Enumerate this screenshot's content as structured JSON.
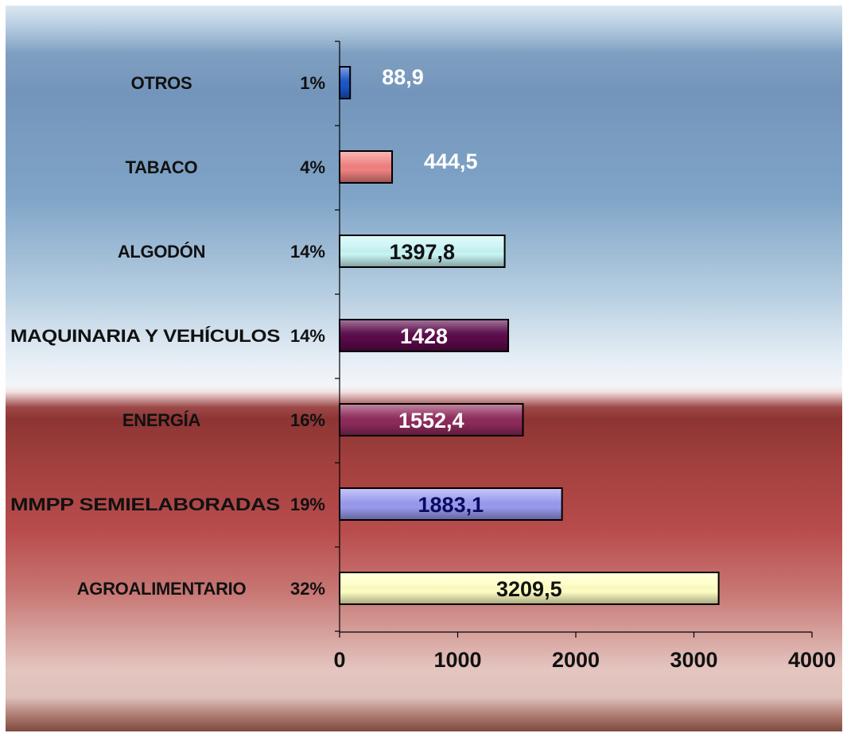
{
  "chart_data": {
    "type": "bar",
    "orientation": "horizontal",
    "title": "",
    "xlabel": "",
    "ylabel": "",
    "xlim": [
      0,
      4000
    ],
    "x_ticks": [
      "0",
      "1000",
      "2000",
      "3000",
      "4000"
    ],
    "grid": false,
    "legend": "none",
    "categories": [
      "OTROS",
      "TABACO",
      "ALGODÓN",
      "MAQUINARIA Y VEHÍCULOS",
      "ENERGÍA",
      "MMPP SEMIELABORADAS",
      "AGROALIMENTARIO"
    ],
    "percentages": [
      "1%",
      "4%",
      "14%",
      "14%",
      "16%",
      "19%",
      "32%"
    ],
    "values": [
      88.9,
      444.5,
      1397.8,
      1428,
      1552.4,
      1883.1,
      3209.5
    ],
    "value_labels": [
      "88,9",
      "444,5",
      "1397,8",
      "1428",
      "1552,4",
      "1883,1",
      "3209,5"
    ],
    "bar_colors": [
      "#1a56c9",
      "#f08080",
      "#c8f4f4",
      "#5a0a4a",
      "#8e2a5a",
      "#9999ee",
      "#ffffc4"
    ],
    "value_label_colors": [
      "#ffffff",
      "#ffffff",
      "#111111",
      "#ffffff",
      "#ffffff",
      "#0a0a60",
      "#111111"
    ]
  }
}
